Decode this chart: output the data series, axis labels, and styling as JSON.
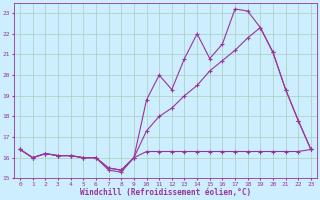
{
  "xlabel": "Windchill (Refroidissement éolien,°C)",
  "xlim": [
    -0.5,
    23.5
  ],
  "ylim": [
    15,
    23.5
  ],
  "yticks": [
    15,
    16,
    17,
    18,
    19,
    20,
    21,
    22,
    23
  ],
  "xticks": [
    0,
    1,
    2,
    3,
    4,
    5,
    6,
    7,
    8,
    9,
    10,
    11,
    12,
    13,
    14,
    15,
    16,
    17,
    18,
    19,
    20,
    21,
    22,
    23
  ],
  "bg_color": "#cceeff",
  "grid_color": "#aaccbb",
  "line_color": "#993399",
  "series1_x": [
    0,
    1,
    2,
    3,
    4,
    5,
    6,
    7,
    8,
    9,
    10,
    11,
    12,
    13,
    14,
    15,
    16,
    17,
    18,
    19,
    20,
    21,
    22,
    23
  ],
  "series1_y": [
    16.4,
    16.0,
    16.2,
    16.1,
    16.1,
    16.0,
    16.0,
    15.5,
    15.4,
    16.0,
    16.3,
    16.3,
    16.3,
    16.3,
    16.3,
    16.3,
    16.3,
    16.3,
    16.3,
    16.3,
    16.3,
    16.3,
    16.3,
    16.4
  ],
  "series2_x": [
    0,
    1,
    2,
    3,
    4,
    5,
    6,
    7,
    8,
    9,
    10,
    11,
    12,
    13,
    14,
    15,
    16,
    17,
    18,
    19,
    20,
    21,
    22,
    23
  ],
  "series2_y": [
    16.4,
    16.0,
    16.2,
    16.1,
    16.1,
    16.0,
    16.0,
    15.4,
    15.3,
    16.0,
    18.8,
    20.0,
    19.3,
    20.8,
    22.0,
    20.8,
    21.5,
    23.2,
    23.1,
    22.3,
    21.1,
    19.3,
    17.8,
    16.4
  ],
  "series3_x": [
    0,
    1,
    2,
    3,
    4,
    5,
    6,
    7,
    8,
    9,
    10,
    11,
    12,
    13,
    14,
    15,
    16,
    17,
    18,
    19,
    20,
    21,
    22,
    23
  ],
  "series3_y": [
    16.4,
    16.0,
    16.2,
    16.1,
    16.1,
    16.0,
    16.0,
    15.5,
    15.4,
    16.0,
    17.3,
    18.0,
    18.4,
    19.0,
    19.5,
    20.2,
    20.7,
    21.2,
    21.8,
    22.3,
    21.1,
    19.3,
    17.8,
    16.4
  ]
}
